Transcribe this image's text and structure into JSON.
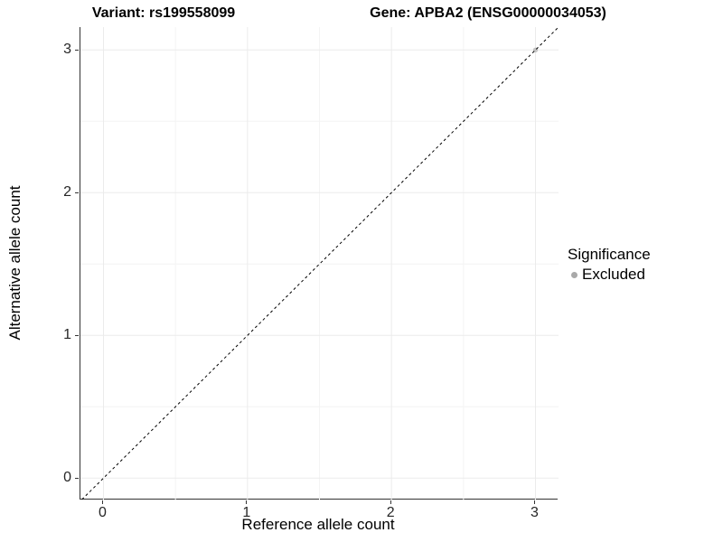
{
  "titles": {
    "variant": "Variant: rs199558099",
    "gene": "Gene: APBA2 (ENSG00000034053)"
  },
  "legend": {
    "title": "Significance",
    "items": [
      {
        "label": "Excluded",
        "color": "#a9a9a9"
      }
    ]
  },
  "chart_data": {
    "type": "scatter",
    "title": "Variant: rs199558099  |  Gene: APBA2 (ENSG00000034053)",
    "xlabel": "Reference allele count",
    "ylabel": "Alternative allele count",
    "xlim": [
      -0.16,
      3.16
    ],
    "ylim": [
      -0.15,
      3.16
    ],
    "x_ticks": [
      0,
      1,
      2,
      3
    ],
    "y_ticks": [
      0,
      1,
      2,
      3
    ],
    "x_minor_ticks": [
      0.5,
      1.5,
      2.5
    ],
    "y_minor_ticks": [
      0.5,
      1.5,
      2.5
    ],
    "grid": true,
    "legend_position": "right",
    "series": [
      {
        "name": "Excluded",
        "color": "#bfbfbf",
        "points": [
          {
            "x": 3,
            "y": 3
          }
        ]
      }
    ],
    "reference_line": {
      "type": "identity",
      "x1": -0.15,
      "y1": -0.15,
      "x2": 3.16,
      "y2": 3.16,
      "style": "dashed",
      "color": "#000000"
    },
    "colors": {
      "grid_major": "#ebebeb",
      "grid_minor": "#f4f4f4",
      "axis_line": "#333333",
      "background": "#ffffff"
    }
  }
}
